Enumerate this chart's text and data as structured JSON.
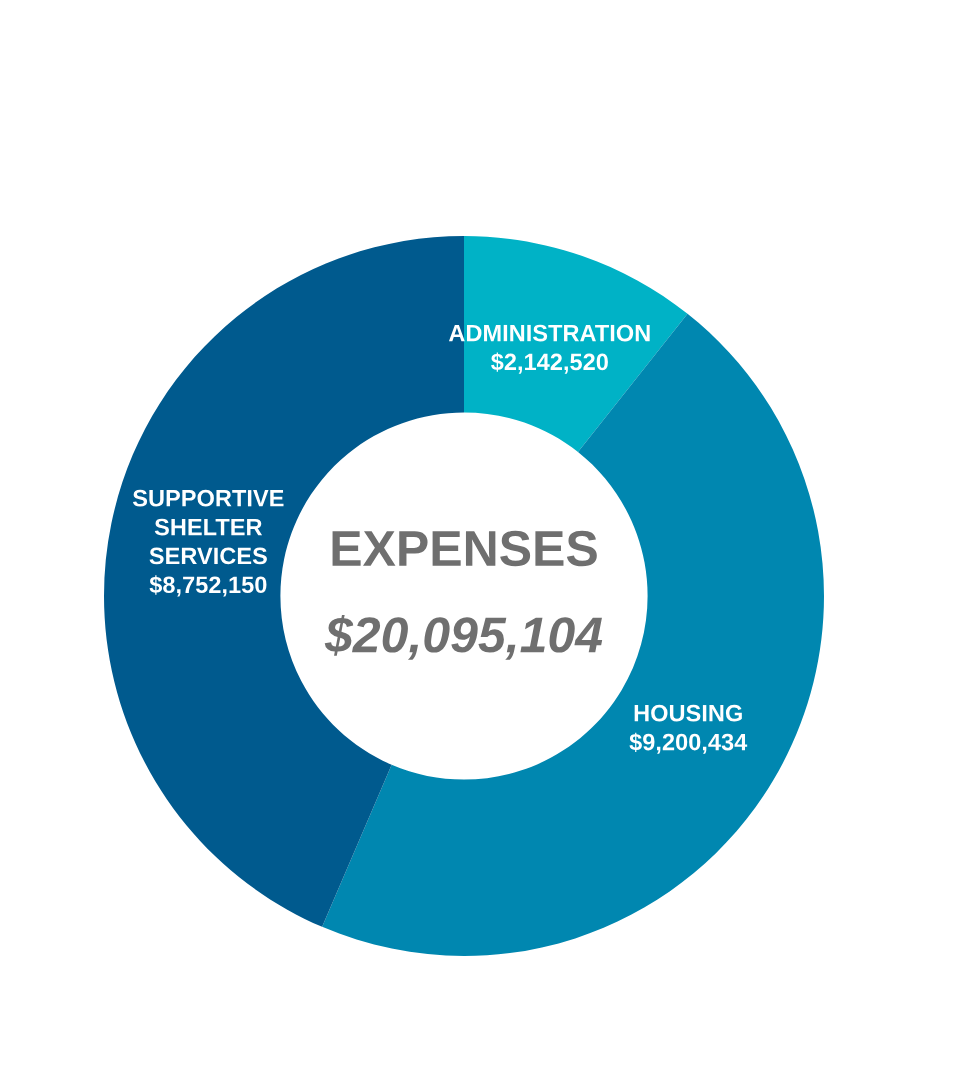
{
  "chart_data": {
    "type": "donut",
    "title": "EXPENSES",
    "subtitle": "$20,095,104",
    "categories": [
      "ADMINISTRATION",
      "HOUSING",
      "SUPPORTIVE SHELTER SERVICES"
    ],
    "values": [
      2142520,
      9200434,
      8752150
    ],
    "colors": [
      "#00b2c6",
      "#0087b0",
      "#005a8e"
    ],
    "value_labels": [
      "$2,142,520",
      "$9,200,434",
      "$8,752,150"
    ],
    "legend": false
  }
}
